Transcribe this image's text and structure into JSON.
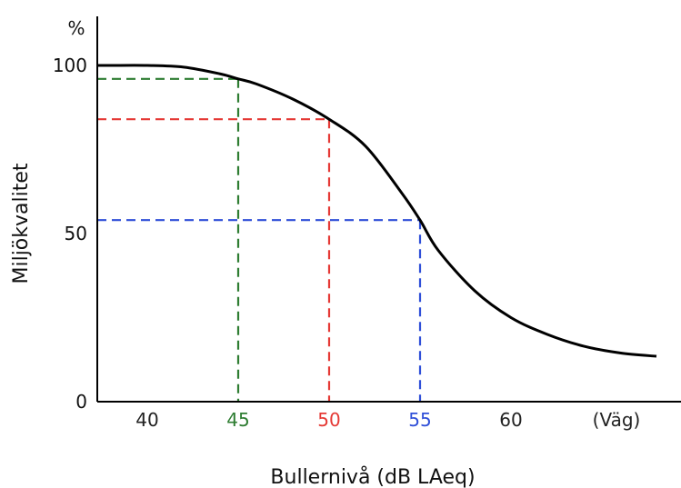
{
  "chart_data": {
    "type": "line",
    "xlabel": "Bullernivå (dB LAeq)",
    "ylabel": "Miljökvalitet",
    "y_unit_label": "%",
    "xlim": [
      36,
      68
    ],
    "ylim": [
      0,
      100
    ],
    "x_ticks": [
      {
        "value": 40,
        "label": "40",
        "color": "#222222"
      },
      {
        "value": 45,
        "label": "45",
        "color": "#2e7d32"
      },
      {
        "value": 50,
        "label": "50",
        "color": "#e53935"
      },
      {
        "value": 55,
        "label": "55",
        "color": "#2f4fd8"
      },
      {
        "value": 60,
        "label": "60",
        "color": "#222222"
      }
    ],
    "x_extra_label": "(Väg)",
    "y_ticks": [
      {
        "value": 0,
        "label": "0"
      },
      {
        "value": 50,
        "label": "50"
      },
      {
        "value": 100,
        "label": "100"
      }
    ],
    "series": [
      {
        "color": "#000000",
        "x": [
          36.5,
          38,
          40,
          42,
          44,
          45,
          46,
          48,
          50,
          52,
          54,
          55,
          56,
          58,
          60,
          62,
          64,
          66,
          68
        ],
        "y": [
          100,
          100,
          100,
          99.5,
          97.5,
          96,
          94.5,
          90,
          84,
          76,
          62,
          54,
          45,
          33,
          25,
          20,
          16.5,
          14.5,
          13.5
        ]
      }
    ],
    "reference_lines": [
      {
        "x": 45,
        "y": 96,
        "color": "#2e7d32"
      },
      {
        "x": 50,
        "y": 84,
        "color": "#e53935"
      },
      {
        "x": 55,
        "y": 54,
        "color": "#2f4fd8"
      }
    ],
    "grid": false,
    "legend": "none"
  }
}
